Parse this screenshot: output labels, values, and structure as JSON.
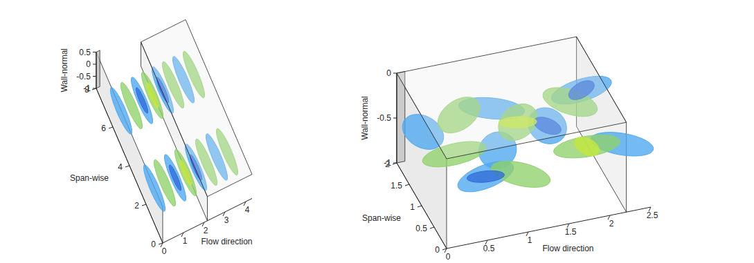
{
  "chart_data": [
    {
      "type": "surface3d",
      "xlabel": "Flow direction",
      "ylabel": "Span-wise",
      "zlabel": "Wall-normal",
      "xlim": [
        0,
        4.3
      ],
      "ylim": [
        0,
        8
      ],
      "zlim": [
        -1,
        0.5
      ],
      "xticks": [
        0,
        1,
        2,
        3,
        4
      ],
      "yticks": [
        0,
        2,
        4,
        6,
        8
      ],
      "zticks": [
        -1,
        -0.5,
        0,
        0.5
      ],
      "series": [
        {
          "color": "#4ea8ef",
          "x": [
            0.4,
            1.4,
            2.4,
            3.4,
            0.4,
            1.4,
            2.4,
            3.4
          ],
          "y": [
            2,
            2,
            2,
            2,
            6,
            6,
            6,
            6
          ],
          "z": [
            -0.5,
            -0.5,
            -0.5,
            -0.5,
            -0.5,
            -0.5,
            -0.5,
            -0.5
          ]
        },
        {
          "color": "#8fd16a",
          "x": [
            0.9,
            1.9,
            2.9,
            3.9,
            0.9,
            1.9,
            2.9,
            3.9
          ],
          "y": [
            2,
            2,
            2,
            2,
            6,
            6,
            6,
            6
          ],
          "z": [
            -0.5,
            -0.5,
            -0.5,
            -0.5,
            -0.5,
            -0.5,
            -0.5,
            -0.5
          ]
        },
        {
          "color": "#2f6bd8",
          "x": [
            1.4,
            2.4,
            1.4,
            2.4
          ],
          "y": [
            2,
            2,
            6,
            6
          ],
          "z": [
            -0.5,
            -0.5,
            -0.5,
            -0.5
          ]
        },
        {
          "color": "#c5e83c",
          "x": [
            1.9,
            1.9
          ],
          "y": [
            2,
            6
          ],
          "z": [
            -0.5,
            -0.5
          ]
        }
      ]
    },
    {
      "type": "surface3d",
      "xlabel": "Flow direction",
      "ylabel": "Span-wise",
      "zlabel": "Wall-normal",
      "xlim": [
        0,
        2.5
      ],
      "ylim": [
        0,
        2
      ],
      "zlim": [
        -1,
        0
      ],
      "xticks": [
        0,
        0.5,
        1,
        1.5,
        2,
        2.5
      ],
      "yticks": [
        0,
        0.5,
        1,
        1.5,
        2
      ],
      "zticks": [
        -1,
        -0.5,
        0
      ],
      "series": [
        {
          "color": "#4ea8ef",
          "x": [
            0.2,
            0.6,
            1.1,
            1.6,
            2.2,
            2.3,
            0.9
          ],
          "y": [
            1.6,
            0.4,
            1.8,
            1.2,
            1.8,
            0.5,
            0.9
          ],
          "z": [
            -0.5,
            -0.5,
            -0.5,
            -0.5,
            -0.5,
            -0.5,
            -0.5
          ]
        },
        {
          "color": "#8fd16a",
          "x": [
            0.4,
            1.0,
            1.3,
            1.9,
            2.0,
            0.7
          ],
          "y": [
            1.0,
            0.3,
            1.4,
            0.6,
            1.6,
            1.8
          ],
          "z": [
            -0.5,
            -0.5,
            -0.5,
            -0.5,
            -0.5,
            -0.5
          ]
        },
        {
          "color": "#2f6bd8",
          "x": [
            0.6,
            1.6,
            2.2
          ],
          "y": [
            0.4,
            1.2,
            1.8
          ],
          "z": [
            -0.5,
            -0.5,
            -0.5
          ]
        },
        {
          "color": "#c5e83c",
          "x": [
            1.3,
            1.9
          ],
          "y": [
            1.4,
            0.6
          ],
          "z": [
            -0.5,
            -0.5
          ]
        }
      ]
    }
  ]
}
